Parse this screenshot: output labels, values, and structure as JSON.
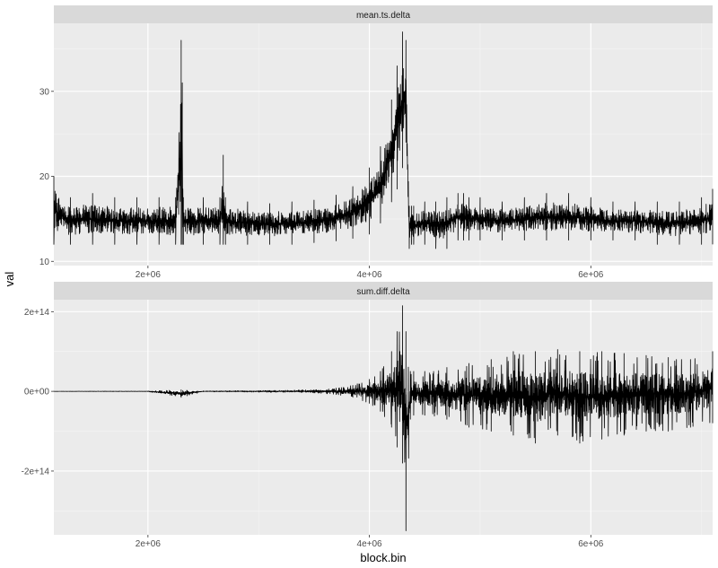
{
  "chart_data": {
    "type": "line",
    "xlabel": "block.bin",
    "ylabel": "val",
    "xlim": [
      1150000,
      7100000
    ],
    "x_ticks": [
      2000000,
      4000000,
      6000000
    ],
    "x_tick_labels": [
      "2e+06",
      "4e+06",
      "6e+06"
    ],
    "grid": true,
    "panels": [
      {
        "title": "mean.ts.delta",
        "ylim": [
          9.5,
          38
        ],
        "y_ticks": [
          10,
          20,
          30
        ],
        "y_tick_labels": [
          "10",
          "20",
          "30"
        ],
        "series": [
          {
            "x": [
              1150000,
              1300000,
              1500000,
              1700000,
              1900000,
              2100000,
              2250000,
              2300000,
              2310000,
              2320000,
              2500000,
              2650000,
              2680000,
              2700000,
              2900000,
              3100000,
              3300000,
              3500000,
              3700000,
              3850000,
              4000000,
              4100000,
              4200000,
              4250000,
              4300000,
              4330000,
              4360000,
              4380000,
              4400000,
              4500000,
              4600000,
              4700000,
              4800000,
              4850000,
              4900000,
              5000000,
              5200000,
              5400000,
              5600000,
              5800000,
              6000000,
              6200000,
              6400000,
              6600000,
              6800000,
              7000000,
              7100000
            ],
            "low": [
              12,
              12,
              12,
              12,
              12,
              12,
              12,
              12,
              12,
              12,
              12,
              12,
              12,
              12,
              12,
              12,
              12,
              12.2,
              12.4,
              12.7,
              13.2,
              14.5,
              17,
              18.5,
              21,
              24,
              11.5,
              12,
              12,
              12,
              11.5,
              11.5,
              12.5,
              12.5,
              12.5,
              12.5,
              12.5,
              12.5,
              12.5,
              12.5,
              12.5,
              12.5,
              12.5,
              12,
              12,
              12,
              12
            ],
            "high": [
              20,
              17.5,
              18,
              17.5,
              17.5,
              17.5,
              17.5,
              36,
              31,
              17.5,
              17.5,
              17.5,
              22.5,
              17.5,
              17,
              16.8,
              17,
              17.2,
              17.8,
              18.8,
              21,
              23.5,
              29,
              33,
              37,
              36,
              16.5,
              16.5,
              16.5,
              17,
              17,
              17.5,
              18,
              18,
              17.5,
              17.5,
              17,
              17.5,
              18,
              18,
              17.5,
              17,
              17,
              17,
              17,
              17.5,
              18.5
            ]
          }
        ]
      },
      {
        "title": "sum.diff.delta",
        "ylim": [
          -360000000000000.0,
          230000000000000.0
        ],
        "y_ticks": [
          -200000000000000.0,
          0,
          200000000000000.0
        ],
        "y_tick_labels": [
          "-2e+14",
          "0e+00",
          "2e+14"
        ],
        "series": [
          {
            "x": [
              1150000,
              1500000,
              2000000,
              2300000,
              2500000,
              3000000,
              3500000,
              3700000,
              3850000,
              4000000,
              4100000,
              4200000,
              4250000,
              4300000,
              4330000,
              4370000,
              4400000,
              4500000,
              4700000,
              4900000,
              5100000,
              5300000,
              5500000,
              5700000,
              5900000,
              6100000,
              6300000,
              6500000,
              6700000,
              6900000,
              7100000
            ],
            "low": [
              -200000000000.0,
              -400000000000.0,
              -600000000000.0,
              -15000000000000.0,
              -1000000000000.0,
              -2000000000000.0,
              -4000000000000.0,
              -8000000000000.0,
              -15000000000000.0,
              -30000000000000.0,
              -50000000000000.0,
              -90000000000000.0,
              -140000000000000.0,
              -180000000000000.0,
              -350000000000000.0,
              -70000000000000.0,
              -60000000000000.0,
              -60000000000000.0,
              -70000000000000.0,
              -90000000000000.0,
              -100000000000000.0,
              -110000000000000.0,
              -130000000000000.0,
              -110000000000000.0,
              -130000000000000.0,
              -120000000000000.0,
              -110000000000000.0,
              -100000000000000.0,
              -100000000000000.0,
              -90000000000000.0,
              -80000000000000.0
            ],
            "high": [
              200000000000.0,
              400000000000.0,
              600000000000.0,
              4000000000000.0,
              1000000000000.0,
              2000000000000.0,
              4000000000000.0,
              8000000000000.0,
              15000000000000.0,
              30000000000000.0,
              50000000000000.0,
              100000000000000.0,
              150000000000000.0,
              215000000000000.0,
              150000000000000.0,
              50000000000000.0,
              50000000000000.0,
              50000000000000.0,
              60000000000000.0,
              70000000000000.0,
              80000000000000.0,
              100000000000000.0,
              100000000000000.0,
              105000000000000.0,
              100000000000000.0,
              100000000000000.0,
              95000000000000.0,
              90000000000000.0,
              85000000000000.0,
              80000000000000.0,
              100000000000000.0
            ]
          }
        ]
      }
    ]
  }
}
